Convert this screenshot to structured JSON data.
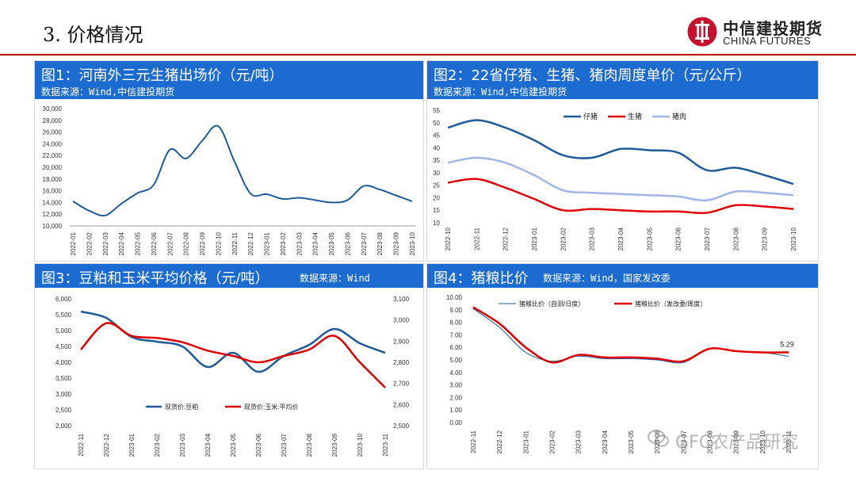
{
  "page": {
    "title": "3. 价格情况"
  },
  "logo": {
    "cn": "中信建投期货",
    "en": "CHINA FUTURES"
  },
  "watermark": {
    "text": "GFC农产品研究"
  },
  "colors": {
    "accent": "#1c6bd0",
    "rule": "#c00000",
    "navy": "#1f5a99",
    "red": "#e00000",
    "light": "#9fb6e6"
  },
  "chart_data": [
    {
      "id": "fig1",
      "type": "line",
      "title": "图1：河南外三元生猪出场价（元/吨）",
      "source": "数据来源：Wind,中信建投期货",
      "ylim": [
        10000,
        30000
      ],
      "yticks": [
        "30,000",
        "28,000",
        "26,000",
        "24,000",
        "22,000",
        "20,000",
        "18,000",
        "16,000",
        "14,000",
        "12,000",
        "10,000"
      ],
      "categories": [
        "2022-01",
        "2022-02",
        "2022-03",
        "2022-04",
        "2022-05",
        "2022-06",
        "2022-07",
        "2022-08",
        "2022-09",
        "2022-10",
        "2022-11",
        "2022-12",
        "2023-01",
        "2023-02",
        "2023-03",
        "2023-04",
        "2023-05",
        "2023-06",
        "2023-07",
        "2023-08",
        "2023-09",
        "2023-10"
      ],
      "series": [
        {
          "name": "生猪出场价",
          "color": "#1f5a99",
          "values": [
            14200,
            12600,
            11800,
            13800,
            15600,
            17000,
            23000,
            21500,
            24500,
            27000,
            21000,
            15500,
            15400,
            14600,
            14800,
            14400,
            14000,
            14400,
            16800,
            16200,
            15200,
            14200
          ]
        }
      ]
    },
    {
      "id": "fig2",
      "type": "line",
      "title": "图2：22省仔猪、生猪、猪肉周度单价（元/公斤）",
      "source": "数据来源：Wind,中信建投期货",
      "ylim": [
        10,
        55
      ],
      "yticks": [
        "55",
        "50",
        "45",
        "40",
        "35",
        "30",
        "25",
        "20",
        "15",
        "10"
      ],
      "categories": [
        "2022-10",
        "2022-11",
        "2022-12",
        "2023-01",
        "2023-02",
        "2023-03",
        "2023-04",
        "2023-05",
        "2023-06",
        "2023-07",
        "2023-08",
        "2023-09",
        "2023-10"
      ],
      "legend": [
        "仔猪",
        "生猪",
        "猪肉"
      ],
      "series": [
        {
          "name": "仔猪",
          "color": "#1f5a99",
          "values": [
            48,
            51,
            48,
            43,
            37,
            36,
            39.5,
            39,
            38,
            31,
            32,
            29,
            25.5
          ]
        },
        {
          "name": "生猪",
          "color": "#e00000",
          "values": [
            26,
            27.5,
            24,
            19.5,
            15,
            15.5,
            15,
            14.5,
            14.5,
            14,
            17,
            16.5,
            15.5
          ]
        },
        {
          "name": "猪肉",
          "color": "#9fb6e6",
          "values": [
            34,
            36,
            34,
            29,
            23,
            22,
            21.5,
            21,
            20.5,
            19,
            22.5,
            22,
            21
          ]
        }
      ]
    },
    {
      "id": "fig3",
      "type": "line",
      "title": "图3：豆粕和玉米平均价格（元/吨）",
      "source": "数据来源：Wind",
      "ylim_left": [
        2000,
        6000
      ],
      "ylim_right": [
        2500,
        3100
      ],
      "yticks_left": [
        "6,000",
        "5,500",
        "5,000",
        "4,500",
        "4,000",
        "3,500",
        "3,000",
        "2,500",
        "2,000"
      ],
      "yticks_right": [
        "3,100",
        "3,000",
        "2,900",
        "2,800",
        "2,700",
        "2,600",
        "2,500"
      ],
      "categories": [
        "2022-11",
        "2022-12",
        "2023-01",
        "2023-02",
        "2023-03",
        "2023-04",
        "2023-05",
        "2023-06",
        "2023-07",
        "2023-08",
        "2023-09",
        "2023-10",
        "2023-11"
      ],
      "legend": [
        "现货价:豆粕",
        "现货价:玉米:平均价"
      ],
      "series": [
        {
          "name": "现货价:豆粕",
          "color": "#1f5a99",
          "axis": "left",
          "values": [
            5600,
            5400,
            4800,
            4650,
            4500,
            3850,
            4300,
            3700,
            4200,
            4550,
            5050,
            4600,
            4300
          ]
        },
        {
          "name": "现货价:玉米:平均价",
          "color": "#e00000",
          "axis": "right",
          "values": [
            2860,
            2985,
            2925,
            2915,
            2895,
            2855,
            2830,
            2800,
            2830,
            2860,
            2925,
            2800,
            2680
          ]
        }
      ]
    },
    {
      "id": "fig4",
      "type": "line",
      "title": "图4：猪粮比价",
      "source": "数据来源：Wind，国家发改委",
      "ylim": [
        0,
        10
      ],
      "yticks": [
        "10.00",
        "9.00",
        "8.00",
        "7.00",
        "6.00",
        "5.00",
        "4.00",
        "3.00",
        "2.00",
        "1.00",
        "0.00"
      ],
      "categories": [
        "2022-11",
        "2022-12",
        "2023-01",
        "2023-02",
        "2023-03",
        "2023-04",
        "2023-05",
        "2023-06",
        "2023-07",
        "2023-08",
        "2023-09",
        "2023-10",
        "2023-11"
      ],
      "legend": [
        "猪粮比价（自测/日度）",
        "猪粮比价（发改委/周度）"
      ],
      "annotation": "5.29",
      "series": [
        {
          "name": "猪粮比价（自测/日度）",
          "color": "#1f5a99",
          "values": [
            9.1,
            7.6,
            5.6,
            4.9,
            5.3,
            5.1,
            5.1,
            5.0,
            4.8,
            5.9,
            5.7,
            5.6,
            5.29
          ]
        },
        {
          "name": "猪粮比价（发改委/周度）",
          "color": "#e00000",
          "values": [
            9.2,
            7.9,
            6.0,
            4.8,
            5.4,
            5.2,
            5.2,
            5.1,
            4.9,
            5.9,
            5.7,
            5.6,
            5.6
          ]
        }
      ]
    }
  ]
}
